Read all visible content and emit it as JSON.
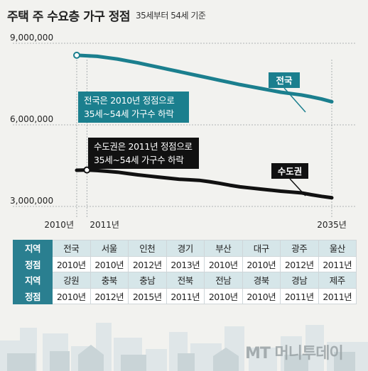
{
  "title": "주택 주 수요층 가구 정점",
  "subtitle": "35세부터 54세 기준",
  "colors": {
    "national": "#1b7f8e",
    "capital": "#111111",
    "accent": "#2a7f90"
  },
  "chart_data": {
    "type": "line",
    "y_ticks": [
      "9,000,000",
      "6,000,000",
      "3,000,000"
    ],
    "x_ticks": [
      "2010년",
      "2011년",
      "2035년"
    ],
    "ylim": [
      3000000,
      9000000
    ],
    "x": [
      2010,
      2011,
      2012,
      2013,
      2014,
      2015,
      2016,
      2017,
      2018,
      2019,
      2020,
      2021,
      2022,
      2023,
      2024,
      2025,
      2026,
      2027,
      2028,
      2029,
      2030,
      2031,
      2032,
      2033,
      2034,
      2035
    ],
    "series": [
      {
        "name": "전국",
        "color": "#1b7f8e",
        "values": [
          8560000,
          8540000,
          8520000,
          8470000,
          8420000,
          8350000,
          8280000,
          8200000,
          8120000,
          8040000,
          7960000,
          7880000,
          7800000,
          7720000,
          7640000,
          7560000,
          7480000,
          7410000,
          7340000,
          7270000,
          7200000,
          7150000,
          7100000,
          7030000,
          6950000,
          6850000
        ],
        "callout": [
          "전국은 2010년 정점으로",
          "35세~54세 가구수 하락"
        ]
      },
      {
        "name": "수도권",
        "color": "#111111",
        "values": [
          4330000,
          4340000,
          4320000,
          4290000,
          4260000,
          4210000,
          4160000,
          4120000,
          4080000,
          4040000,
          4000000,
          3980000,
          3960000,
          3910000,
          3850000,
          3780000,
          3720000,
          3680000,
          3640000,
          3600000,
          3560000,
          3530000,
          3500000,
          3430000,
          3370000,
          3320000
        ],
        "callout": [
          "수도권은 2011년 정점으로",
          "35세~54세 가구수 하락"
        ]
      }
    ]
  },
  "table": {
    "label_region": "지역",
    "label_peak": "정점",
    "rows": [
      {
        "regions": [
          "전국",
          "서울",
          "인천",
          "경기",
          "부산",
          "대구",
          "광주",
          "울산"
        ],
        "peaks": [
          "2010년",
          "2010년",
          "2012년",
          "2013년",
          "2010년",
          "2010년",
          "2012년",
          "2011년"
        ]
      },
      {
        "regions": [
          "강원",
          "충북",
          "충남",
          "전북",
          "전남",
          "경북",
          "경남",
          "제주"
        ],
        "peaks": [
          "2010년",
          "2012년",
          "2015년",
          "2011년",
          "2010년",
          "2010년",
          "2011년",
          "2011년"
        ]
      }
    ]
  },
  "logo_text": "MT 머니투데이"
}
